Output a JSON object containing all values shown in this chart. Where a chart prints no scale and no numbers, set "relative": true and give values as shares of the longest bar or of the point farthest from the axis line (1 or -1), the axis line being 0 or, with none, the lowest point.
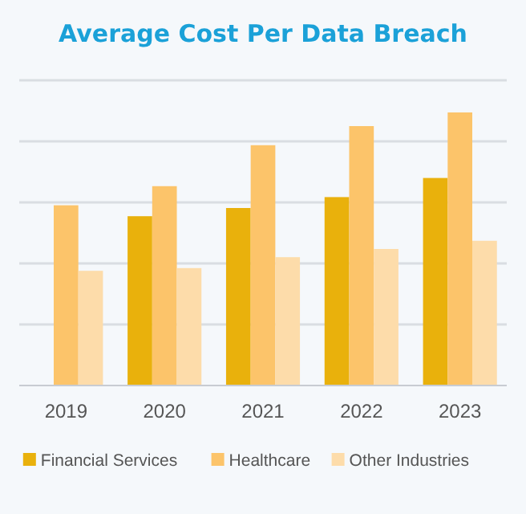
{
  "chart_data": {
    "type": "bar",
    "title": "Average Cost Per Data Breach",
    "relative": true,
    "grid": true,
    "legend": "bottom",
    "categories": [
      "2019",
      "2020",
      "2021",
      "2022",
      "2023"
    ],
    "series": [
      {
        "name": "Financial Services",
        "color": "#e9b10c",
        "values": [
          null,
          0.62,
          0.65,
          0.69,
          0.76
        ]
      },
      {
        "name": "Healthcare",
        "color": "#fcc46a",
        "values": [
          0.66,
          0.73,
          0.88,
          0.95,
          1
        ]
      },
      {
        "name": "Other Industries",
        "color": "#fddcaa",
        "values": [
          0.42,
          0.43,
          0.47,
          0.5,
          0.53
        ]
      }
    ]
  }
}
